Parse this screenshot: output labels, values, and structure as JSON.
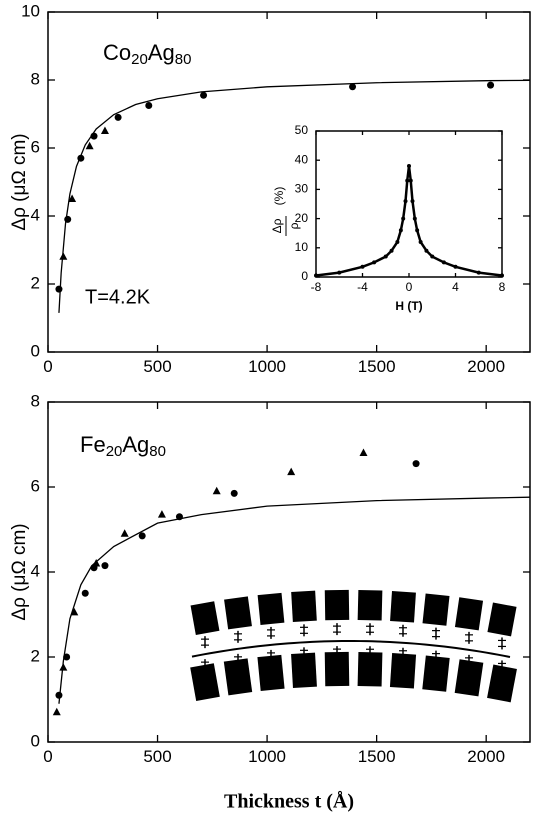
{
  "chart_data": [
    {
      "type": "scatter",
      "ylabel": "Δρ (μΩ cm)",
      "label_parts": [
        "Co",
        "20",
        "Ag",
        "80"
      ],
      "annotation": "T=4.2K",
      "xlim": [
        0,
        2200
      ],
      "xticks": [
        0,
        500,
        1000,
        1500,
        2000
      ],
      "ylim": [
        0,
        10
      ],
      "yticks": [
        0,
        2,
        4,
        6,
        8,
        10
      ],
      "series": [
        {
          "kind": "scatter",
          "marker": "circle",
          "color": "#000",
          "x": [
            50,
            90,
            150,
            210,
            320,
            460,
            710,
            1390,
            2020
          ],
          "values": [
            1.85,
            3.9,
            5.7,
            6.35,
            6.9,
            7.25,
            7.55,
            7.8,
            7.85
          ]
        },
        {
          "kind": "scatter",
          "marker": "triangle",
          "color": "#000",
          "x": [
            70,
            110,
            190,
            260
          ],
          "values": [
            2.8,
            4.5,
            6.05,
            6.5
          ]
        },
        {
          "kind": "line",
          "color": "#000",
          "x": [
            50,
            60,
            80,
            100,
            130,
            170,
            220,
            300,
            400,
            500,
            700,
            1000,
            1500,
            2000,
            2200
          ],
          "values": [
            1.15,
            2.32,
            3.78,
            4.65,
            5.46,
            6.09,
            6.56,
            6.98,
            7.28,
            7.45,
            7.65,
            7.8,
            7.92,
            7.98,
            7.99
          ]
        }
      ]
    },
    {
      "type": "scatter",
      "ylabel_parts": [
        "Δρ",
        "ρ",
        "(%)"
      ],
      "xlabel": "H (T)",
      "xlim": [
        -8,
        8
      ],
      "xticks": [
        -8,
        -4,
        0,
        4,
        8
      ],
      "ylim": [
        0,
        50
      ],
      "yticks": [
        0,
        10,
        20,
        30,
        40,
        50
      ],
      "series": [
        {
          "kind": "line",
          "marker": "dot",
          "color": "#000",
          "x": [
            -8,
            -6,
            -4,
            -3,
            -2,
            -1.5,
            -1,
            -0.7,
            -0.5,
            -0.3,
            -0.15,
            0,
            0.15,
            0.3,
            0.5,
            0.7,
            1,
            1.5,
            2,
            3,
            4,
            6,
            8
          ],
          "values": [
            0.5,
            1.5,
            3.5,
            5,
            7,
            9,
            12,
            16,
            20,
            26,
            33,
            38,
            33,
            26,
            20,
            16,
            12,
            9,
            7,
            5,
            3.5,
            1.5,
            0.5
          ]
        }
      ]
    },
    {
      "type": "scatter",
      "ylabel": "Δρ (μΩ cm)",
      "label_parts": [
        "Fe",
        "20",
        "Ag",
        "80"
      ],
      "xlabel": "Thickness t (Å)",
      "xlim": [
        0,
        2200
      ],
      "xticks": [
        0,
        500,
        1000,
        1500,
        2000
      ],
      "ylim": [
        0,
        8
      ],
      "yticks": [
        0,
        2,
        4,
        6,
        8
      ],
      "series": [
        {
          "kind": "scatter",
          "marker": "circle",
          "color": "#000",
          "x": [
            50,
            85,
            170,
            210,
            260,
            430,
            600,
            850,
            1680
          ],
          "values": [
            1.1,
            2.0,
            3.5,
            4.1,
            4.15,
            4.85,
            5.3,
            5.85,
            6.55
          ]
        },
        {
          "kind": "scatter",
          "marker": "triangle",
          "color": "#000",
          "x": [
            40,
            70,
            120,
            220,
            350,
            520,
            770,
            1110,
            1440
          ],
          "values": [
            0.7,
            1.75,
            3.05,
            4.2,
            4.9,
            5.35,
            5.9,
            6.35,
            6.8
          ]
        },
        {
          "kind": "line",
          "color": "#000",
          "x": [
            50,
            70,
            100,
            150,
            200,
            300,
            500,
            700,
            1000,
            1500,
            2000,
            2200
          ],
          "values": [
            0.9,
            1.9,
            2.9,
            3.7,
            4.15,
            4.6,
            5.15,
            5.35,
            5.55,
            5.68,
            5.74,
            5.76
          ]
        }
      ]
    }
  ]
}
